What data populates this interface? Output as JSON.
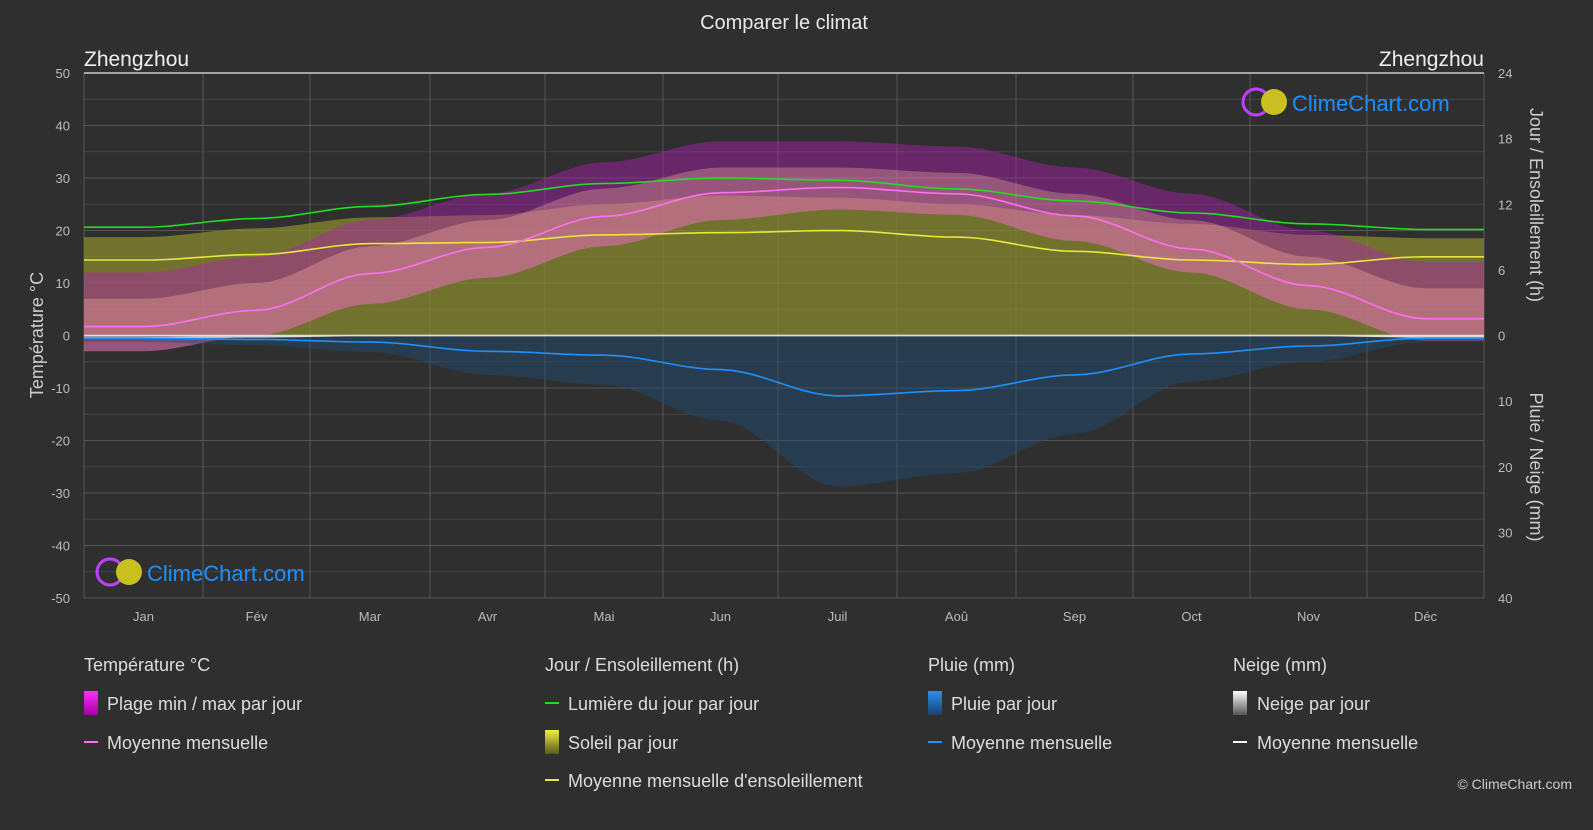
{
  "chart_data": {
    "type": "line",
    "title": "Comparer le climat",
    "location_left": "Zhengzhou",
    "location_right": "Zhengzhou",
    "ylabel_left": "Température °C",
    "ylabel_right_top": "Jour / Ensoleillement (h)",
    "ylabel_right_bottom": "Pluie / Neige (mm)",
    "ylim_left": [
      -50,
      50
    ],
    "yticks_left": [
      "50",
      "40",
      "30",
      "20",
      "10",
      "0",
      "-10",
      "-20",
      "-30",
      "-40",
      "-50"
    ],
    "yticks_right_top": [
      "24",
      "18",
      "12",
      "6",
      "0"
    ],
    "yticks_right_bottom": [
      "10",
      "20",
      "30",
      "40"
    ],
    "categories": [
      "Jan",
      "Fév",
      "Mar",
      "Avr",
      "Mai",
      "Jun",
      "Juil",
      "Aoû",
      "Sep",
      "Oct",
      "Nov",
      "Déc"
    ],
    "series": [
      {
        "name": "Moyenne mensuelle (température °C)",
        "color": "#ff70f0",
        "values": [
          1.7,
          4.8,
          11.8,
          16.8,
          22.7,
          27.2,
          28.2,
          27.0,
          22.8,
          16.5,
          9.5,
          3.2
        ]
      },
      {
        "name": "Temp. max moyenne °C",
        "values": [
          7,
          10,
          17,
          22,
          28,
          32,
          32,
          31,
          27,
          22,
          15,
          9
        ]
      },
      {
        "name": "Temp. min moyenne °C",
        "values": [
          -3,
          0,
          6,
          11,
          17,
          22,
          24,
          23,
          18,
          12,
          5,
          -1
        ]
      },
      {
        "name": "Lumière du jour par jour (h)",
        "color": "#22dd22",
        "values": [
          9.9,
          10.7,
          11.8,
          12.9,
          13.9,
          14.4,
          14.2,
          13.4,
          12.3,
          11.2,
          10.2,
          9.7
        ]
      },
      {
        "name": "Soleil par jour max (h)",
        "values": [
          9.0,
          9.8,
          10.8,
          11.0,
          12.0,
          12.8,
          12.6,
          12.0,
          11.0,
          10.2,
          9.2,
          8.9
        ]
      },
      {
        "name": "Moyenne mensuelle d'ensoleillement (h)",
        "color": "#e8e83a",
        "values": [
          6.9,
          7.4,
          8.4,
          8.5,
          9.2,
          9.4,
          9.6,
          9.0,
          7.7,
          6.9,
          6.5,
          7.2
        ]
      },
      {
        "name": "Pluie moyenne mensuelle (mm)",
        "color": "#1e90ff",
        "values": [
          0.4,
          0.6,
          1.0,
          2.4,
          3.0,
          5.2,
          9.2,
          8.4,
          6.0,
          2.8,
          1.6,
          0.4
        ]
      },
      {
        "name": "Neige moyenne mensuelle (mm)",
        "color": "#ffffff",
        "values": [
          0.3,
          0.2,
          0,
          0,
          0,
          0,
          0,
          0,
          0,
          0,
          0,
          0.2
        ]
      }
    ]
  },
  "legend": {
    "temp_header": "Température °C",
    "temp_range": "Plage min / max par jour",
    "temp_mean": "Moyenne mensuelle",
    "sun_header": "Jour / Ensoleillement (h)",
    "daylight": "Lumière du jour par jour",
    "sunshine": "Soleil par jour",
    "sunshine_mean": "Moyenne mensuelle d'ensoleillement",
    "rain_header": "Pluie (mm)",
    "rain_day": "Pluie par jour",
    "rain_mean": "Moyenne mensuelle",
    "snow_header": "Neige (mm)",
    "snow_day": "Neige par jour",
    "snow_mean": "Moyenne mensuelle"
  },
  "brand": "ClimeChart.com",
  "copyright": "© ClimeChart.com"
}
